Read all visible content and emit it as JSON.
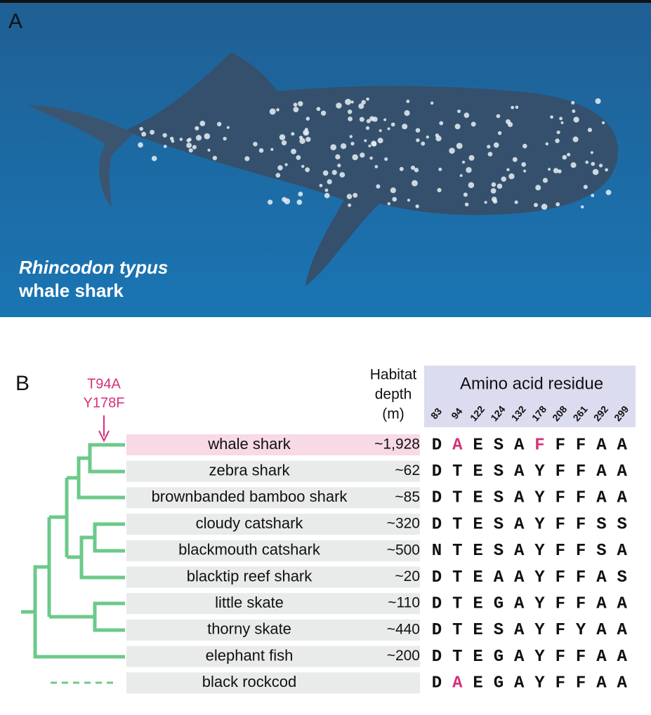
{
  "panel_a": {
    "label": "A",
    "species": "Rhincodon typus",
    "common_name": "whale shark"
  },
  "panel_b": {
    "label": "B",
    "mutation_labels": [
      "T94A",
      "Y178F"
    ],
    "mutation_color": "#d6307a",
    "depth_header": [
      "Habitat",
      "depth",
      "(m)"
    ],
    "residue_header": "Amino acid residue",
    "positions": [
      "83",
      "94",
      "122",
      "124",
      "132",
      "178",
      "208",
      "261",
      "292",
      "299"
    ],
    "rows": [
      {
        "name": "whale shark",
        "depth": "~1,928",
        "residues": [
          "D",
          "A",
          "E",
          "S",
          "A",
          "F",
          "F",
          "F",
          "A",
          "A"
        ],
        "highlighted": [
          1,
          5
        ],
        "background": "#f8d9e6"
      },
      {
        "name": "zebra shark",
        "depth": "~62",
        "residues": [
          "D",
          "T",
          "E",
          "S",
          "A",
          "Y",
          "F",
          "F",
          "A",
          "A"
        ],
        "highlighted": [],
        "background": "#e9eaea"
      },
      {
        "name": "brownbanded bamboo shark",
        "depth": "~85",
        "residues": [
          "D",
          "T",
          "E",
          "S",
          "A",
          "Y",
          "F",
          "F",
          "A",
          "A"
        ],
        "highlighted": [],
        "background": "#e9eaea"
      },
      {
        "name": "cloudy catshark",
        "depth": "~320",
        "residues": [
          "D",
          "T",
          "E",
          "S",
          "A",
          "Y",
          "F",
          "F",
          "S",
          "S"
        ],
        "highlighted": [],
        "background": "#e9eaea"
      },
      {
        "name": "blackmouth catshark",
        "depth": "~500",
        "residues": [
          "N",
          "T",
          "E",
          "S",
          "A",
          "Y",
          "F",
          "F",
          "S",
          "A"
        ],
        "highlighted": [],
        "background": "#e9eaea"
      },
      {
        "name": "blacktip reef shark",
        "depth": "~20",
        "residues": [
          "D",
          "T",
          "E",
          "A",
          "A",
          "Y",
          "F",
          "F",
          "A",
          "S"
        ],
        "highlighted": [],
        "background": "#e9eaea"
      },
      {
        "name": "little skate",
        "depth": "~110",
        "residues": [
          "D",
          "T",
          "E",
          "G",
          "A",
          "Y",
          "F",
          "F",
          "A",
          "A"
        ],
        "highlighted": [],
        "background": "#e9eaea"
      },
      {
        "name": "thorny skate",
        "depth": "~440",
        "residues": [
          "D",
          "T",
          "E",
          "S",
          "A",
          "Y",
          "F",
          "Y",
          "A",
          "A"
        ],
        "highlighted": [],
        "background": "#e9eaea"
      },
      {
        "name": "elephant fish",
        "depth": "~200",
        "residues": [
          "D",
          "T",
          "E",
          "G",
          "A",
          "Y",
          "F",
          "F",
          "A",
          "A"
        ],
        "highlighted": [],
        "background": "#e9eaea"
      },
      {
        "name": "black rockcod",
        "residues": [
          "D",
          "A",
          "E",
          "G",
          "A",
          "Y",
          "F",
          "F",
          "A",
          "A"
        ],
        "highlighted": [
          1
        ],
        "background": "#e9eaea"
      }
    ]
  }
}
